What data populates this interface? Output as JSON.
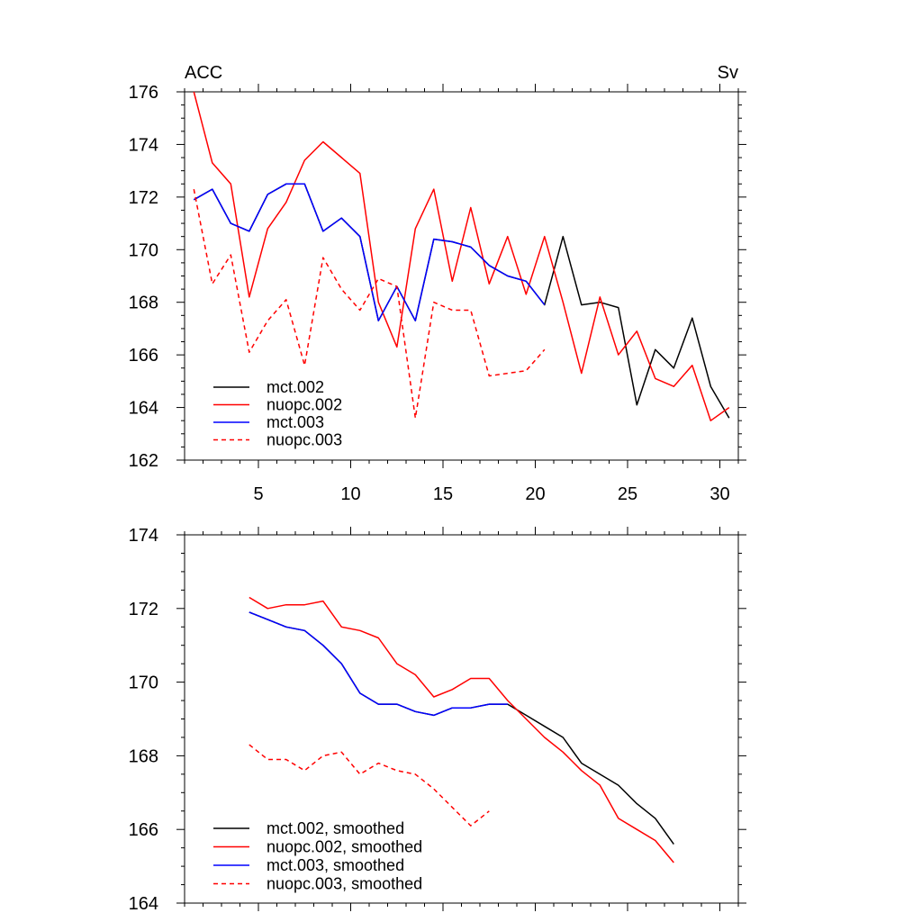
{
  "chart_data": [
    {
      "type": "line",
      "title_left": "ACC",
      "title_right": "Sv",
      "xlim": [
        1,
        31
      ],
      "ylim": [
        162,
        176
      ],
      "x_ticks": [
        5,
        10,
        15,
        20,
        25,
        30
      ],
      "x_tick_labels": [
        "5",
        "10",
        "15",
        "20",
        "25",
        "30"
      ],
      "y_ticks": [
        162,
        164,
        166,
        168,
        170,
        172,
        174,
        176
      ],
      "y_tick_labels": [
        "162",
        "164",
        "166",
        "168",
        "170",
        "172",
        "174",
        "176"
      ],
      "legend_position": "bottom-left",
      "series": [
        {
          "name": "mct.002",
          "color": "#000000",
          "dash": "solid",
          "x": [
            1.5,
            2.5,
            3.5,
            4.5,
            5.5,
            6.5,
            7.5,
            8.5,
            9.5,
            10.5,
            11.5,
            12.5,
            13.5,
            14.5,
            15.5,
            16.5,
            17.5,
            18.5,
            19.5,
            20.5,
            21.5,
            22.5,
            23.5,
            24.5,
            25.5,
            26.5,
            27.5,
            28.5,
            29.5,
            30.5
          ],
          "values": [
            171.9,
            172.3,
            171.0,
            170.7,
            172.1,
            172.5,
            172.5,
            170.7,
            171.2,
            170.5,
            167.3,
            168.6,
            167.3,
            170.4,
            170.3,
            170.1,
            169.4,
            169.0,
            168.8,
            167.9,
            170.5,
            167.9,
            168.0,
            167.8,
            164.1,
            166.2,
            165.5,
            167.4,
            164.8,
            163.6
          ]
        },
        {
          "name": "nuopc.002",
          "color": "#ff0000",
          "dash": "solid",
          "x": [
            1.5,
            2.5,
            3.5,
            4.5,
            5.5,
            6.5,
            7.5,
            8.5,
            9.5,
            10.5,
            11.5,
            12.5,
            13.5,
            14.5,
            15.5,
            16.5,
            17.5,
            18.5,
            19.5,
            20.5,
            21.5,
            22.5,
            23.5,
            24.5,
            25.5,
            26.5,
            27.5,
            28.5,
            29.5,
            30.5
          ],
          "values": [
            176.0,
            173.3,
            172.5,
            168.2,
            170.8,
            171.8,
            173.4,
            174.1,
            173.5,
            172.9,
            168.0,
            166.3,
            170.8,
            172.3,
            168.8,
            171.6,
            168.7,
            170.5,
            168.3,
            170.5,
            168.0,
            165.3,
            168.2,
            166.0,
            166.9,
            165.1,
            164.8,
            165.6,
            163.5,
            164.0
          ]
        },
        {
          "name": "mct.003",
          "color": "#0000ff",
          "dash": "solid",
          "x": [
            1.5,
            2.5,
            3.5,
            4.5,
            5.5,
            6.5,
            7.5,
            8.5,
            9.5,
            10.5,
            11.5,
            12.5,
            13.5,
            14.5,
            15.5,
            16.5,
            17.5,
            18.5,
            19.5,
            20.5
          ],
          "values": [
            171.9,
            172.3,
            171.0,
            170.7,
            172.1,
            172.5,
            172.5,
            170.7,
            171.2,
            170.5,
            167.3,
            168.6,
            167.3,
            170.4,
            170.3,
            170.1,
            169.4,
            169.0,
            168.8,
            167.9
          ]
        },
        {
          "name": "nuopc.003",
          "color": "#ff0000",
          "dash": "dashed",
          "x": [
            1.5,
            2.5,
            3.5,
            4.5,
            5.5,
            6.5,
            7.5,
            8.5,
            9.5,
            10.5,
            11.5,
            12.5,
            13.5,
            14.5,
            15.5,
            16.5,
            17.5,
            18.5,
            19.5,
            20.5
          ],
          "values": [
            172.3,
            168.7,
            169.8,
            166.1,
            167.3,
            168.1,
            165.6,
            169.7,
            168.5,
            167.7,
            168.9,
            168.6,
            163.6,
            168.0,
            167.7,
            167.7,
            165.2,
            165.3,
            165.4,
            166.2
          ]
        }
      ]
    },
    {
      "type": "line",
      "xlim": [
        1,
        31
      ],
      "ylim": [
        164,
        174
      ],
      "x_ticks": [
        5,
        10,
        15,
        20,
        25,
        30
      ],
      "y_ticks": [
        164,
        166,
        168,
        170,
        172,
        174
      ],
      "y_tick_labels": [
        "164",
        "166",
        "168",
        "170",
        "172",
        "174"
      ],
      "legend_position": "bottom-left",
      "series": [
        {
          "name": "mct.002, smoothed",
          "color": "#000000",
          "dash": "solid",
          "x": [
            4.5,
            5.5,
            6.5,
            7.5,
            8.5,
            9.5,
            10.5,
            11.5,
            12.5,
            13.5,
            14.5,
            15.5,
            16.5,
            17.5,
            18.5,
            19.5,
            20.5,
            21.5,
            22.5,
            23.5,
            24.5,
            25.5,
            26.5,
            27.5
          ],
          "values": [
            171.9,
            171.7,
            171.5,
            171.4,
            171.0,
            170.5,
            169.7,
            169.4,
            169.4,
            169.2,
            169.1,
            169.3,
            169.3,
            169.4,
            169.4,
            169.1,
            168.8,
            168.5,
            167.8,
            167.5,
            167.2,
            166.7,
            166.3,
            165.6
          ]
        },
        {
          "name": "nuopc.002, smoothed",
          "color": "#ff0000",
          "dash": "solid",
          "x": [
            4.5,
            5.5,
            6.5,
            7.5,
            8.5,
            9.5,
            10.5,
            11.5,
            12.5,
            13.5,
            14.5,
            15.5,
            16.5,
            17.5,
            18.5,
            19.5,
            20.5,
            21.5,
            22.5,
            23.5,
            24.5,
            25.5,
            26.5,
            27.5
          ],
          "values": [
            172.3,
            172.0,
            172.1,
            172.1,
            172.2,
            171.5,
            171.4,
            171.2,
            170.5,
            170.2,
            169.6,
            169.8,
            170.1,
            170.1,
            169.5,
            169.0,
            168.5,
            168.1,
            167.6,
            167.2,
            166.3,
            166.0,
            165.7,
            165.1
          ]
        },
        {
          "name": "mct.003, smoothed",
          "color": "#0000ff",
          "dash": "solid",
          "x": [
            4.5,
            5.5,
            6.5,
            7.5,
            8.5,
            9.5,
            10.5,
            11.5,
            12.5,
            13.5,
            14.5,
            15.5,
            16.5,
            17.5,
            18.5
          ],
          "values": [
            171.9,
            171.7,
            171.5,
            171.4,
            171.0,
            170.5,
            169.7,
            169.4,
            169.4,
            169.2,
            169.1,
            169.3,
            169.3,
            169.4,
            169.4
          ]
        },
        {
          "name": "nuopc.003, smoothed",
          "color": "#ff0000",
          "dash": "dashed",
          "x": [
            4.5,
            5.5,
            6.5,
            7.5,
            8.5,
            9.5,
            10.5,
            11.5,
            12.5,
            13.5,
            14.5,
            15.5,
            16.5,
            17.5
          ],
          "values": [
            168.3,
            167.9,
            167.9,
            167.6,
            168.0,
            168.1,
            167.5,
            167.8,
            167.6,
            167.5,
            167.1,
            166.6,
            166.1,
            166.5
          ]
        }
      ]
    }
  ]
}
